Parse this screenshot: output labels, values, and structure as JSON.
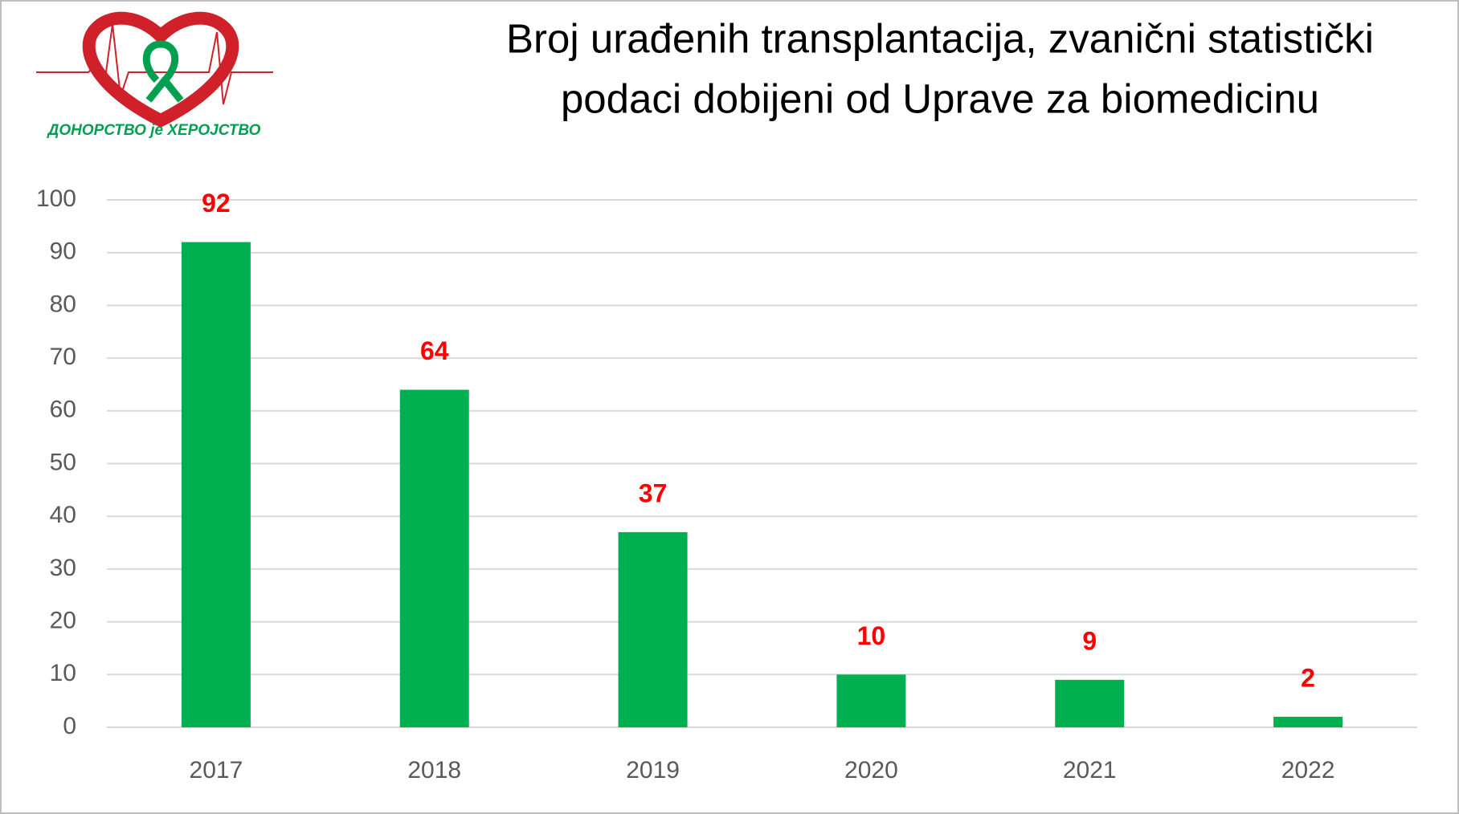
{
  "logo": {
    "text": "ДОНОРСТВО je ХЕРОЈСТВО"
  },
  "chart_data": {
    "type": "bar",
    "title": [
      "Broj urađenih transplantacija, zvanični statistički",
      "podaci dobijeni od Uprave za biomedicinu"
    ],
    "categories": [
      "2017",
      "2018",
      "2019",
      "2020",
      "2021",
      "2022"
    ],
    "values": [
      92,
      64,
      37,
      10,
      9,
      2
    ],
    "color": "#00b050",
    "label_color": "#ff0000",
    "ylim": [
      0,
      100
    ],
    "yticks": [
      0,
      10,
      20,
      30,
      40,
      50,
      60,
      70,
      80,
      90,
      100
    ],
    "grid": true
  }
}
